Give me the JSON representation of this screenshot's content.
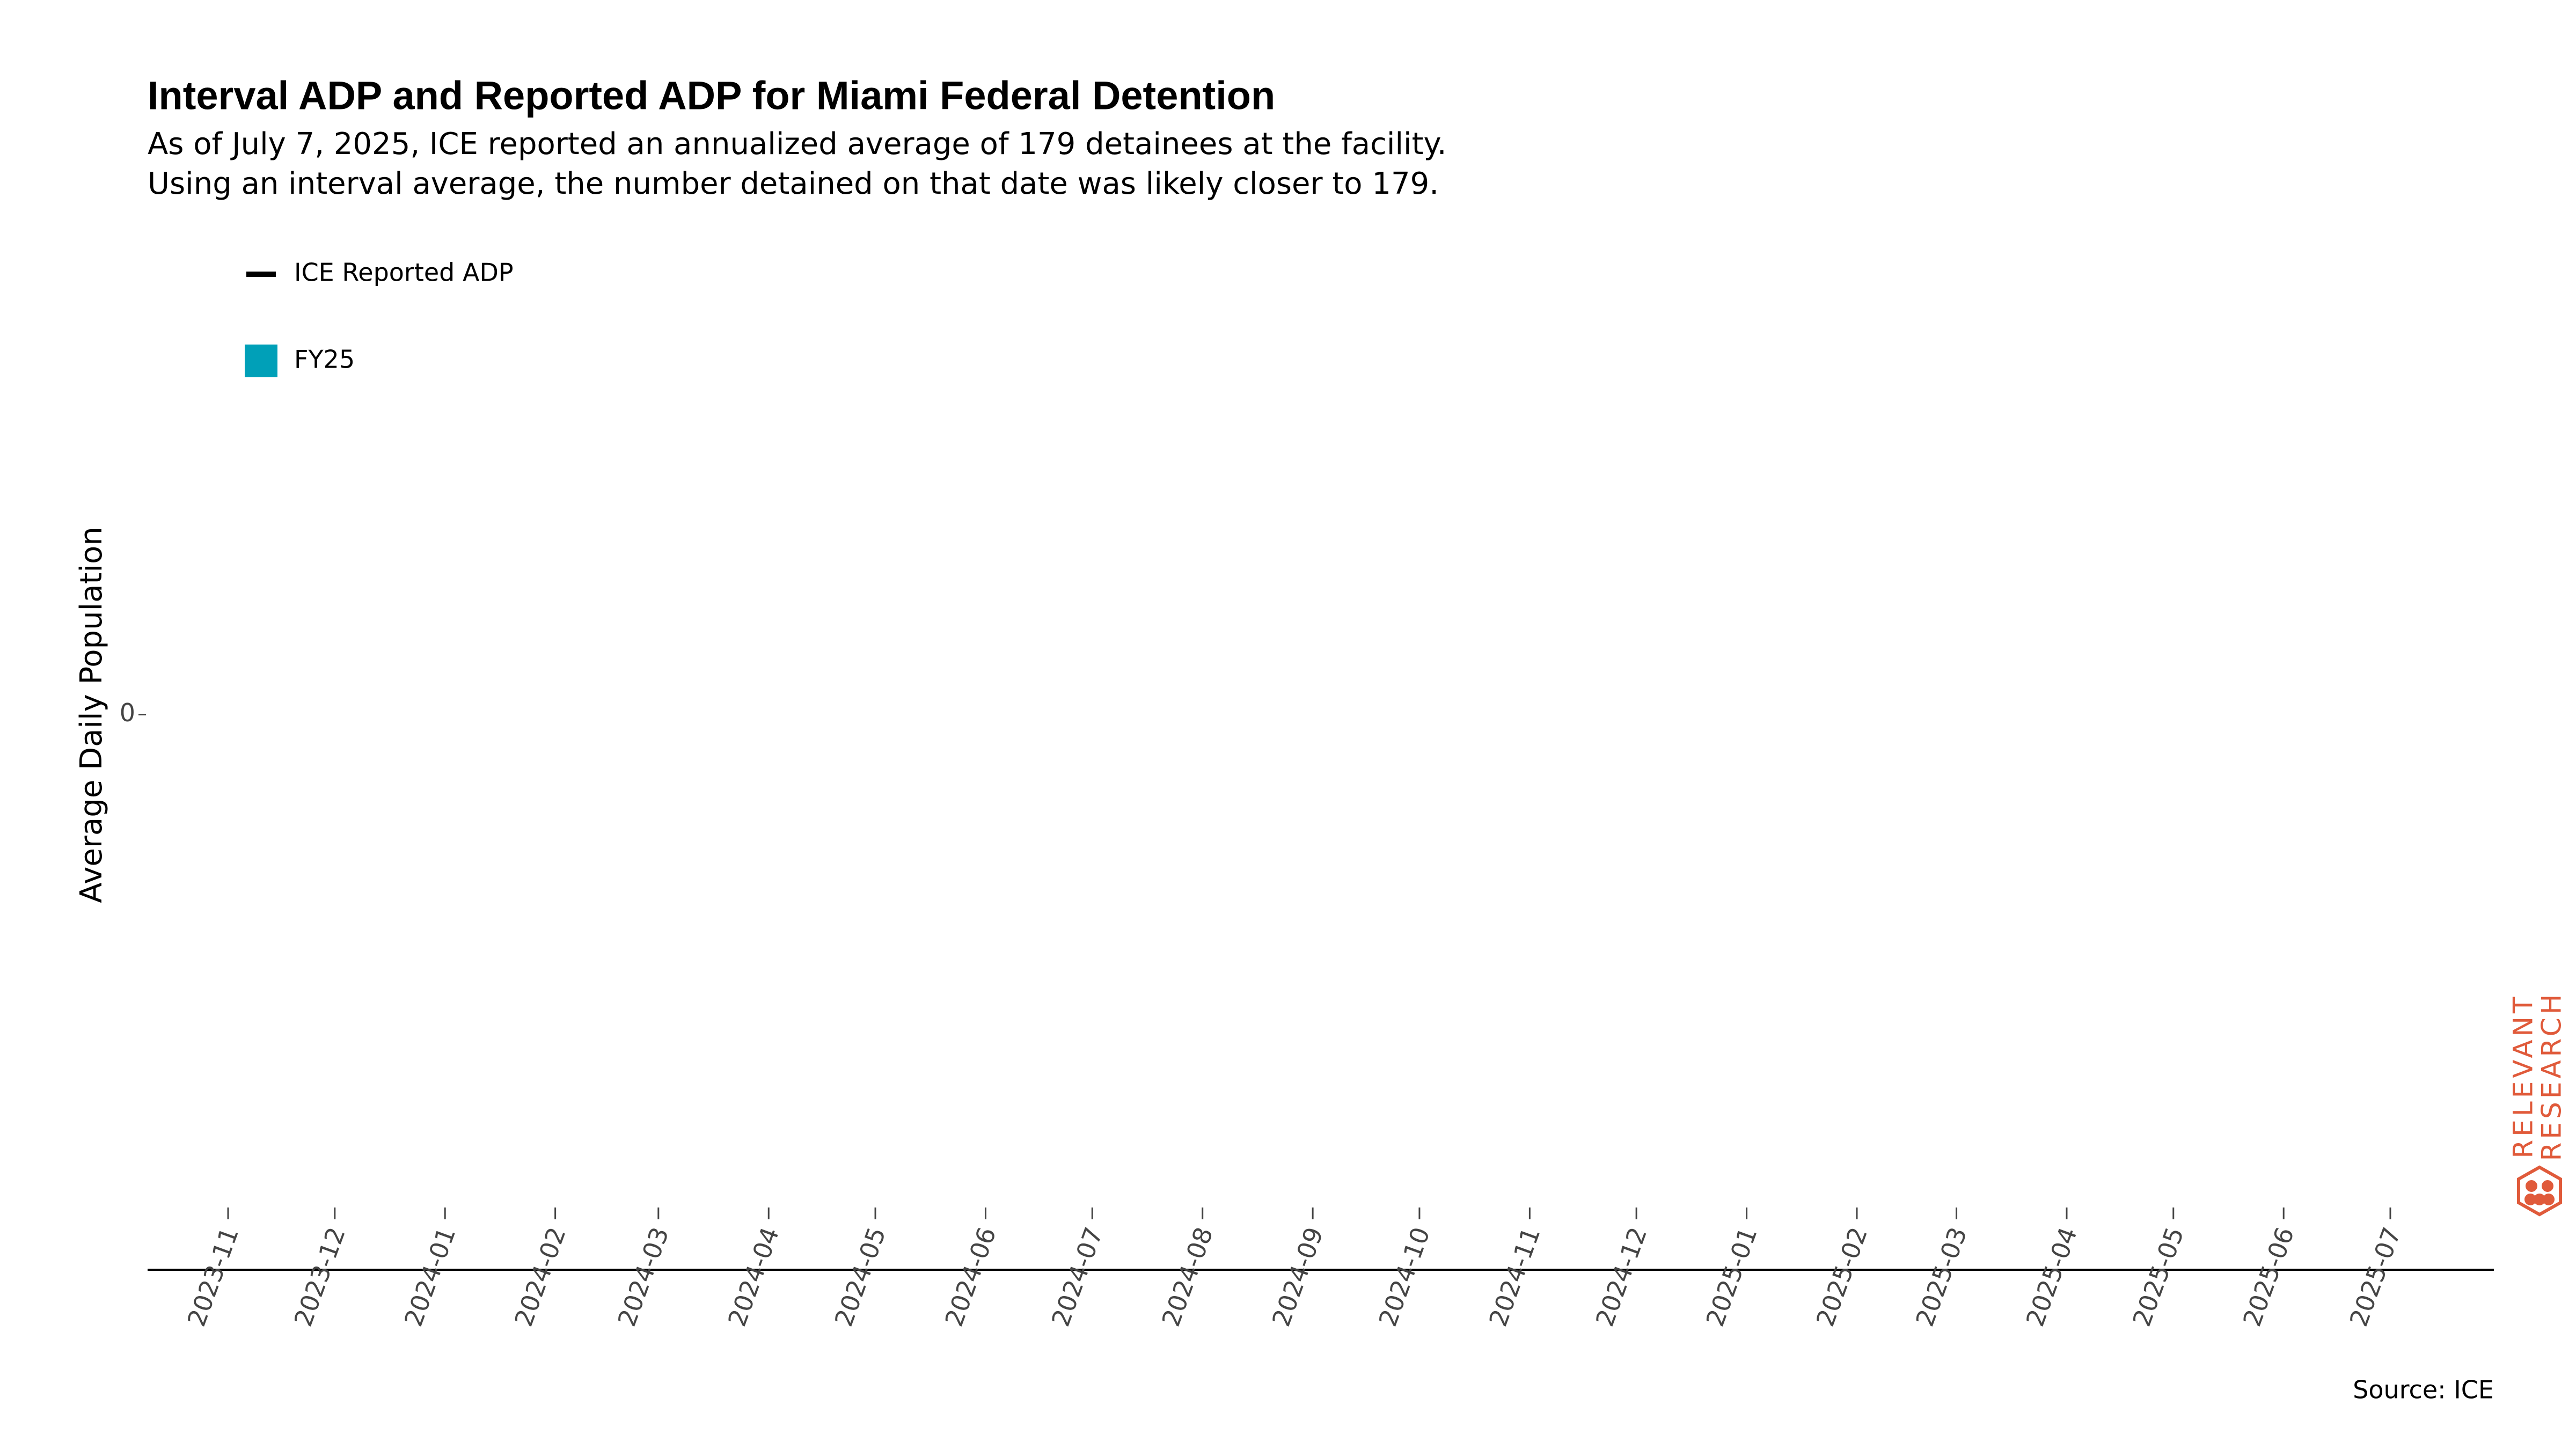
{
  "chart_data": {
    "type": "line",
    "title": "Interval ADP and Reported ADP for Miami Federal Detention",
    "subtitle": [
      "As of July 7, 2025, ICE reported an annualized average of 179 detainees at the facility.",
      "Using an interval average, the number detained on that date was likely closer to 179."
    ],
    "y_label": "Average Daily Population",
    "x": [
      "2023-11",
      "2023-12",
      "2024-01",
      "2024-02",
      "2024-03",
      "2024-04",
      "2024-05",
      "2024-06",
      "2024-07",
      "2024-08",
      "2024-09",
      "2024-10",
      "2024-11",
      "2024-12",
      "2025-01",
      "2025-02",
      "2025-03",
      "2025-04",
      "2025-05",
      "2025-06",
      "2025-07"
    ],
    "series": [
      {
        "name": "ICE Reported ADP",
        "color": "#000000",
        "kind": "line",
        "values": [
          null,
          null,
          null,
          null,
          null,
          null,
          null,
          null,
          null,
          null,
          null,
          null,
          null,
          null,
          null,
          null,
          null,
          null,
          null,
          null,
          null
        ]
      },
      {
        "name": "FY25",
        "color": "#00a0b8",
        "kind": "area",
        "values": [
          null,
          null,
          null,
          null,
          null,
          null,
          null,
          null,
          null,
          null,
          null,
          null,
          null,
          null,
          null,
          null,
          null,
          null,
          null,
          null,
          null
        ]
      }
    ],
    "ylim": [
      -1,
      1
    ],
    "yticks": [
      0
    ],
    "source": "Source: ICE",
    "branding": [
      "RELEVANT",
      "RESEARCH"
    ]
  }
}
